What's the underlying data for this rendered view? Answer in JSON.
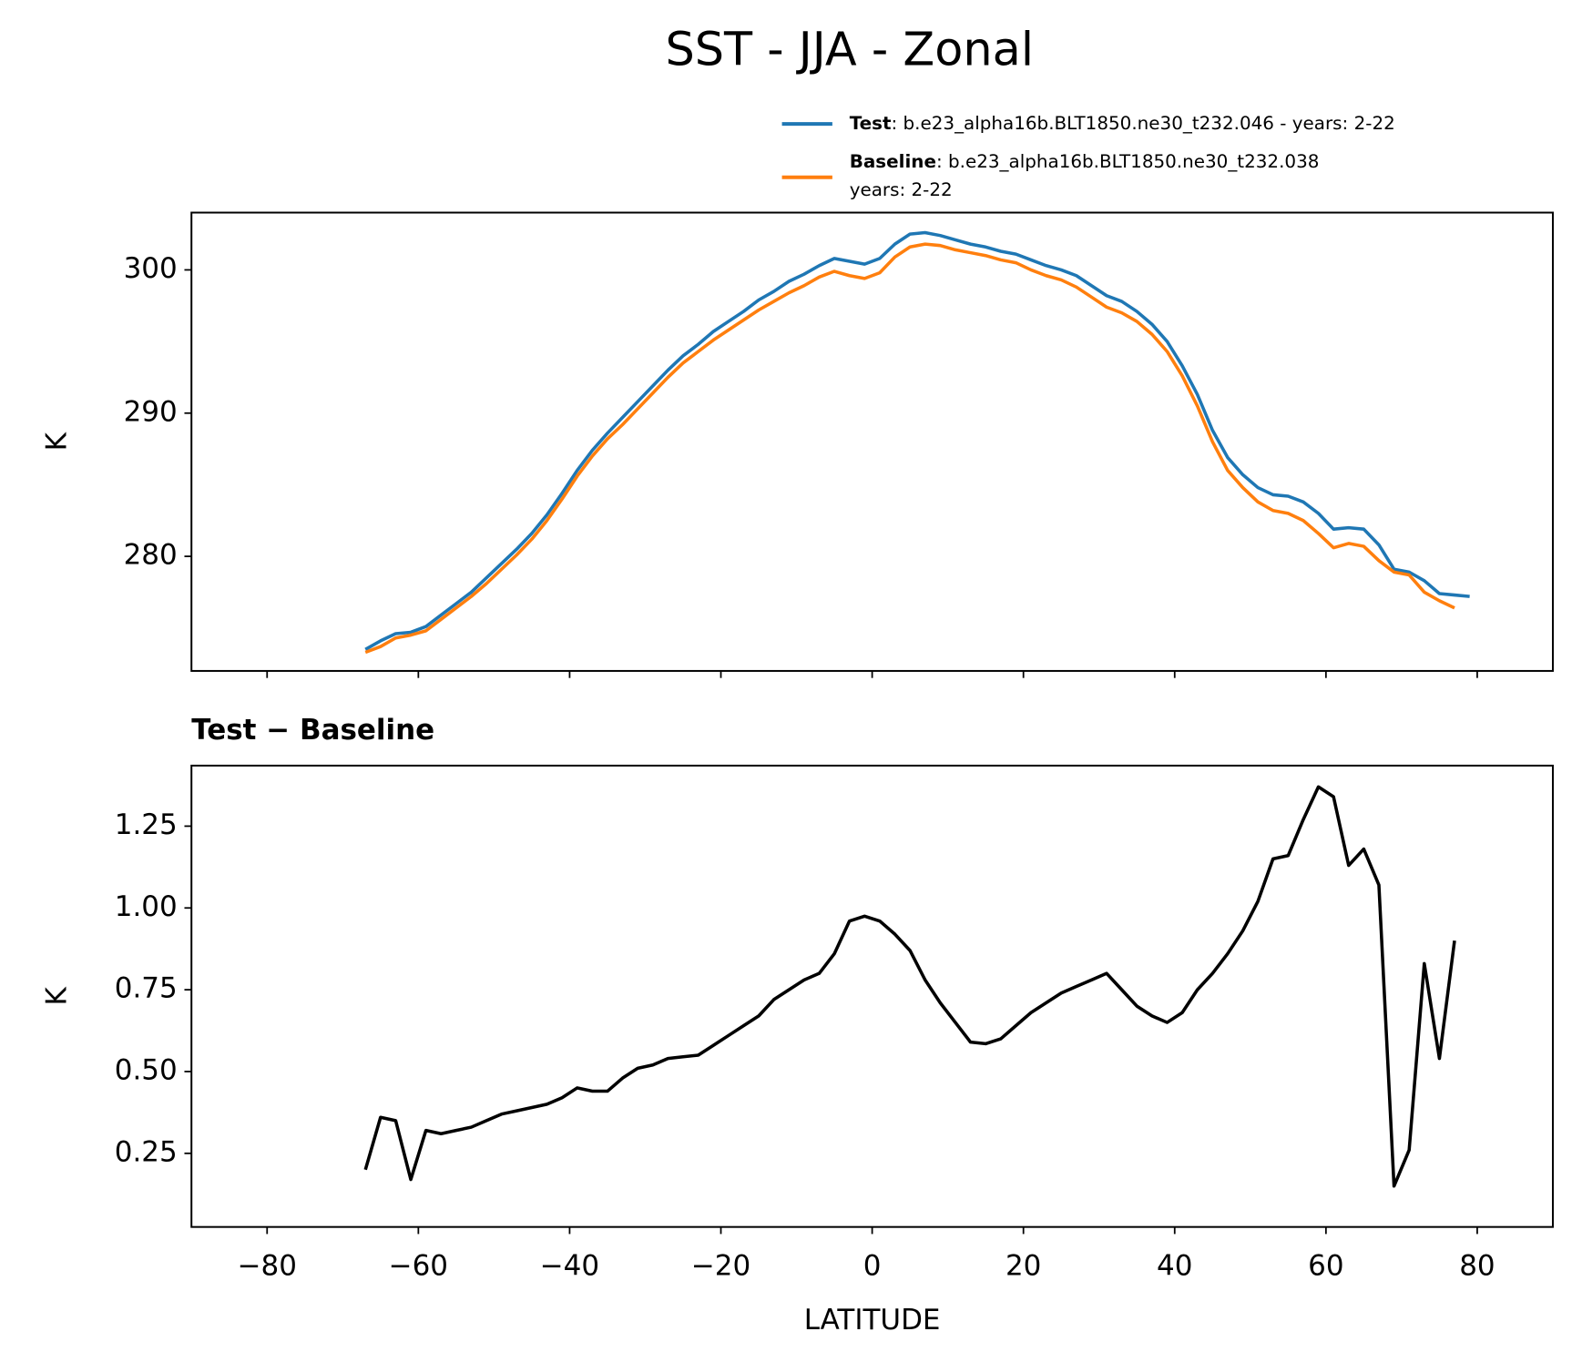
{
  "chart_data": [
    {
      "type": "line",
      "title": "SST - JJA - Zonal",
      "ylabel": "K",
      "x": [
        -67,
        -65,
        -63,
        -61,
        -59,
        -57,
        -55,
        -53,
        -51,
        -49,
        -47,
        -45,
        -43,
        -41,
        -39,
        -37,
        -35,
        -33,
        -31,
        -29,
        -27,
        -25,
        -23,
        -21,
        -19,
        -17,
        -15,
        -13,
        -11,
        -9,
        -7,
        -5,
        -3,
        -1,
        1,
        3,
        5,
        7,
        9,
        11,
        13,
        15,
        17,
        19,
        21,
        23,
        25,
        27,
        29,
        31,
        33,
        35,
        37,
        39,
        41,
        43,
        45,
        47,
        49,
        51,
        53,
        55,
        57,
        59,
        61,
        63,
        65,
        67,
        69,
        71,
        73,
        75,
        77,
        79
      ],
      "series": [
        {
          "name": "Test",
          "label": ": b.e23_alpha16b.BLT1850.ne30_t232.046 - years: 2-22",
          "color": "#1f77b4",
          "values": [
            273.5,
            274.1,
            274.6,
            274.7,
            275.1,
            275.9,
            276.7,
            277.5,
            278.5,
            279.5,
            280.5,
            281.6,
            282.9,
            284.4,
            286.0,
            287.4,
            288.6,
            289.7,
            290.8,
            291.9,
            293.0,
            294.0,
            294.8,
            295.7,
            296.4,
            297.1,
            297.9,
            298.5,
            299.2,
            299.7,
            300.3,
            300.8,
            300.6,
            300.4,
            300.8,
            301.8,
            302.5,
            302.6,
            302.4,
            302.1,
            301.8,
            301.6,
            301.3,
            301.1,
            300.7,
            300.3,
            300.0,
            299.6,
            298.9,
            298.2,
            297.8,
            297.1,
            296.2,
            295.0,
            293.3,
            291.3,
            288.8,
            286.9,
            285.7,
            284.8,
            284.3,
            284.2,
            283.8,
            283.0,
            281.9,
            282.0,
            281.9,
            280.8,
            279.1,
            278.9,
            278.3,
            277.4,
            277.3,
            277.2
          ]
        },
        {
          "name": "Baseline",
          "label": [
            ": b.e23_alpha16b.BLT1850.ne30_t232.038",
            "years: 2-22"
          ],
          "color": "#ff7f0e",
          "values": [
            273.3,
            273.7,
            274.3,
            274.5,
            274.8,
            275.6,
            276.4,
            277.2,
            278.1,
            279.1,
            280.1,
            281.2,
            282.5,
            284.0,
            285.6,
            287.0,
            288.2,
            289.2,
            290.3,
            291.4,
            292.5,
            293.5,
            294.3,
            295.1,
            295.8,
            296.5,
            297.2,
            297.8,
            298.4,
            298.9,
            299.5,
            299.9,
            299.6,
            299.4,
            299.8,
            300.9,
            301.6,
            301.8,
            301.7,
            301.4,
            301.2,
            301.0,
            300.7,
            300.5,
            300.0,
            299.6,
            299.3,
            298.8,
            298.1,
            297.4,
            297.0,
            296.4,
            295.5,
            294.3,
            292.6,
            290.5,
            288.0,
            286.0,
            284.8,
            283.8,
            283.2,
            283.0,
            282.5,
            281.6,
            280.6,
            280.9,
            280.7,
            279.7,
            278.9,
            278.7,
            277.5,
            276.9,
            276.4,
            null
          ]
        }
      ],
      "xlim": [
        -90,
        90
      ],
      "ylim": [
        272,
        304
      ],
      "yticks": [
        280,
        290,
        300
      ]
    },
    {
      "type": "line",
      "title": "Test − Baseline",
      "ylabel": "K",
      "xlabel": "LATITUDE",
      "x": [
        -67,
        -65,
        -63,
        -61,
        -59,
        -57,
        -55,
        -53,
        -51,
        -49,
        -47,
        -45,
        -43,
        -41,
        -39,
        -37,
        -35,
        -33,
        -31,
        -29,
        -27,
        -25,
        -23,
        -21,
        -19,
        -17,
        -15,
        -13,
        -11,
        -9,
        -7,
        -5,
        -3,
        -1,
        1,
        3,
        5,
        7,
        9,
        11,
        13,
        15,
        17,
        19,
        21,
        23,
        25,
        27,
        29,
        31,
        33,
        35,
        37,
        39,
        41,
        43,
        45,
        47,
        49,
        51,
        53,
        55,
        57,
        59,
        61,
        63,
        65,
        67,
        69,
        71,
        73,
        75,
        77,
        79
      ],
      "series": [
        {
          "color": "#000000",
          "values": [
            0.2,
            0.36,
            0.35,
            0.17,
            0.32,
            0.31,
            0.32,
            0.33,
            0.35,
            0.37,
            0.38,
            0.39,
            0.4,
            0.42,
            0.45,
            0.44,
            0.44,
            0.48,
            0.51,
            0.52,
            0.54,
            0.545,
            0.55,
            0.58,
            0.61,
            0.64,
            0.67,
            0.72,
            0.75,
            0.78,
            0.8,
            0.86,
            0.96,
            0.975,
            0.96,
            0.92,
            0.87,
            0.78,
            0.71,
            0.65,
            0.59,
            0.585,
            0.6,
            0.64,
            0.68,
            0.71,
            0.74,
            0.76,
            0.78,
            0.8,
            0.75,
            0.7,
            0.67,
            0.65,
            0.68,
            0.75,
            0.8,
            0.86,
            0.93,
            1.02,
            1.15,
            1.16,
            1.27,
            1.37,
            1.34,
            1.13,
            1.18,
            1.07,
            0.15,
            0.26,
            0.83,
            0.54,
            0.9,
            null
          ]
        }
      ],
      "xlim": [
        -90,
        90
      ],
      "ylim": [
        0.025,
        1.435
      ],
      "xticks": [
        {
          "value": -80,
          "label": "−80"
        },
        {
          "value": -60,
          "label": "−60"
        },
        {
          "value": -40,
          "label": "−40"
        },
        {
          "value": -20,
          "label": "−20"
        },
        0,
        20,
        40,
        60,
        80
      ],
      "yticks": [
        0.25,
        {
          "value": 0.5,
          "label": "0.50"
        },
        0.75,
        {
          "value": 1,
          "label": "1.00"
        },
        1.25
      ]
    }
  ]
}
